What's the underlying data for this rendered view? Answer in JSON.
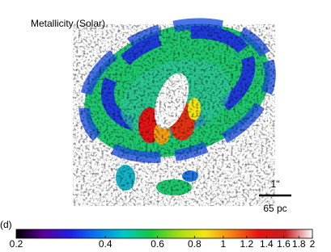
{
  "title": "Metallicity (Solar)",
  "panel_label": "(d)",
  "scale_bar": {
    "angle": "1\"",
    "distance": "65 pc"
  },
  "colorbar": {
    "scale": "log",
    "lim": [
      0.2,
      2
    ],
    "ticks": [
      0.2,
      0.4,
      0.6,
      0.8,
      1,
      1.2,
      1.4,
      1.6,
      1.8,
      2
    ],
    "colors": [
      "#000000",
      "#5a0096",
      "#1e1ee6",
      "#0a78f0",
      "#00c8c8",
      "#14c83c",
      "#a0dc14",
      "#f5e614",
      "#f58214",
      "#e61414",
      "#c81e1e",
      "#ffffff"
    ]
  }
}
